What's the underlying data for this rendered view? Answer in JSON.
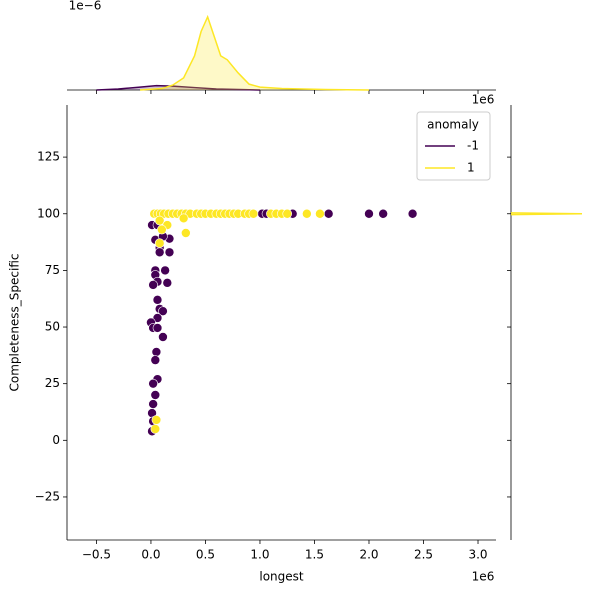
{
  "chart_data": [
    {
      "type": "scatter",
      "xlabel": "longest",
      "ylabel": "Completeness_Specific",
      "x_offset_label": "1e6",
      "legend_title": "anomaly",
      "legend": "upper right",
      "xlim": [
        -0.77,
        3.165
      ],
      "xticks": [
        {
          "value": -0.5,
          "label": "−0.5"
        },
        {
          "value": 0,
          "label": "0.0"
        },
        0.5,
        {
          "value": 1,
          "label": "1.0"
        },
        1.5,
        {
          "value": 2,
          "label": "2.0"
        },
        2.5,
        {
          "value": 3,
          "label": "3.0"
        }
      ],
      "ylim": [
        -44,
        148
      ],
      "yticks": [
        {
          "value": -25,
          "label": "−25"
        },
        0,
        25,
        50,
        75,
        100,
        125
      ],
      "series": [
        {
          "name": "-1",
          "color": "#440154",
          "x": [
            0.01,
            0.06,
            0.04,
            0.08,
            0.08,
            0.17,
            0.13,
            0.04,
            0.04,
            0.06,
            0.02,
            0.15,
            0.06,
            0.08,
            0.11,
            0.06,
            0,
            0.02,
            0.06,
            0.11,
            0.05,
            0.04,
            0.06,
            0.02,
            0.04,
            0.02,
            0.01,
            0.02,
            0.01,
            0.17,
            0.11,
            1.02,
            1.06,
            1.3,
            1.63,
            2.0,
            2.13,
            2.4
          ],
          "values": [
            95,
            95,
            88.5,
            85,
            83,
            83,
            75,
            75,
            73,
            70,
            68.6,
            69.5,
            62,
            58,
            57,
            54,
            52,
            49.6,
            49.6,
            45.6,
            39,
            35.4,
            27,
            25,
            20,
            16,
            12,
            8.4,
            4,
            89,
            90,
            100,
            100,
            100,
            100,
            100,
            100,
            100
          ]
        },
        {
          "name": "1",
          "color": "#fde725",
          "x": [
            0.03,
            0.06,
            0.09,
            0.12,
            0.16,
            0.2,
            0.24,
            0.28,
            0.32,
            0.36,
            0.42,
            0.46,
            0.5,
            0.55,
            0.6,
            0.64,
            0.68,
            0.72,
            0.76,
            0.8,
            0.86,
            0.9,
            0.94,
            1.1,
            1.15,
            1.2,
            1.25,
            1.43,
            1.55,
            0.08,
            0.15,
            0.1,
            0.32,
            0.3,
            0.05,
            0.04,
            0.08
          ],
          "values": [
            100,
            100,
            100,
            100,
            100,
            100,
            100,
            100,
            100,
            100,
            100,
            100,
            100,
            100,
            100,
            100,
            100,
            100,
            100,
            100,
            100,
            100,
            100,
            100,
            100,
            100,
            100,
            100,
            100,
            97,
            95,
            93,
            91.5,
            98,
            9,
            5,
            87
          ]
        }
      ]
    },
    {
      "type": "kde-x",
      "x_offset_label": "1e6",
      "y_offset_label": "1e−6",
      "xlim": [
        -0.77,
        3.165
      ],
      "ylim": [
        0,
        1.6
      ],
      "series": [
        {
          "color": "#440154",
          "x": [
            -0.5,
            -0.3,
            -0.1,
            0.05,
            0.2,
            0.4,
            0.6,
            0.8,
            1.0
          ],
          "values": [
            0,
            0.02,
            0.06,
            0.09,
            0.08,
            0.05,
            0.02,
            0.01,
            0
          ]
        },
        {
          "color": "#fde725",
          "x": [
            -0.1,
            0.1,
            0.2,
            0.3,
            0.4,
            0.46,
            0.52,
            0.58,
            0.64,
            0.7,
            0.8,
            0.9,
            1.0,
            1.2,
            1.6,
            2.0
          ],
          "values": [
            0,
            0.03,
            0.1,
            0.25,
            0.7,
            1.2,
            1.5,
            1.1,
            0.7,
            0.62,
            0.35,
            0.12,
            0.06,
            0.03,
            0.01,
            0
          ]
        }
      ]
    },
    {
      "type": "kde-y",
      "ylim": [
        -44,
        148
      ],
      "xlim": [
        0,
        1.1
      ],
      "series": [
        {
          "color": "#fde725",
          "x": [
            99.6,
            100,
            100.4
          ],
          "values": [
            0,
            1,
            0
          ]
        }
      ]
    }
  ]
}
